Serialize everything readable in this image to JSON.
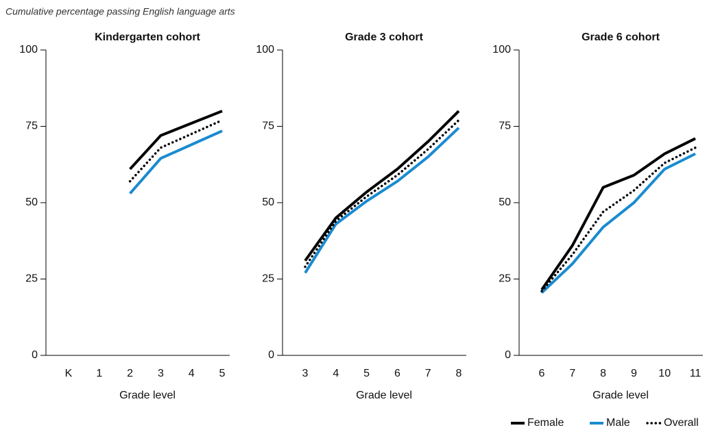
{
  "title": "Cumulative percentage passing English language arts",
  "chart_data": [
    {
      "type": "line",
      "title": "Kindergarten cohort",
      "xlabel": "Grade level",
      "categories": [
        "K",
        "1",
        "2",
        "3",
        "4",
        "5"
      ],
      "ylim": [
        0,
        100
      ],
      "yticks": [
        0,
        25,
        50,
        75,
        100
      ],
      "series": [
        {
          "name": "Female",
          "color": "#000000",
          "linestyle": "solid",
          "values": [
            null,
            null,
            61,
            72,
            76,
            80
          ]
        },
        {
          "name": "Male",
          "color": "#1a8bd0",
          "linestyle": "solid",
          "values": [
            null,
            null,
            53,
            64.5,
            69,
            73.5
          ]
        },
        {
          "name": "Overall",
          "color": "#000000",
          "linestyle": "dotted",
          "values": [
            null,
            null,
            57,
            68,
            72.5,
            77
          ]
        }
      ]
    },
    {
      "type": "line",
      "title": "Grade 3 cohort",
      "xlabel": "Grade level",
      "categories": [
        "3",
        "4",
        "5",
        "6",
        "7",
        "8"
      ],
      "ylim": [
        0,
        100
      ],
      "yticks": [
        0,
        25,
        50,
        75,
        100
      ],
      "series": [
        {
          "color": "#000000",
          "linestyle": "solid",
          "values": [
            31,
            45,
            53.5,
            61,
            70,
            80
          ]
        },
        {
          "color": "#1a8bd0",
          "linestyle": "solid",
          "values": [
            27,
            43,
            50.5,
            57,
            65,
            74.5
          ]
        },
        {
          "color": "#000000",
          "linestyle": "dotted",
          "values": [
            29,
            44,
            52,
            59,
            67.5,
            77
          ]
        }
      ]
    },
    {
      "type": "line",
      "title": "Grade 6 cohort",
      "xlabel": "Grade level",
      "categories": [
        "6",
        "7",
        "8",
        "9",
        "10",
        "11"
      ],
      "ylim": [
        0,
        100
      ],
      "yticks": [
        0,
        25,
        50,
        75,
        100
      ],
      "series": [
        {
          "color": "#000000",
          "linestyle": "solid",
          "values": [
            21.5,
            36,
            55,
            59,
            66,
            71
          ]
        },
        {
          "color": "#1a8bd0",
          "linestyle": "solid",
          "values": [
            20.5,
            30,
            42,
            50,
            61,
            66
          ]
        },
        {
          "color": "#000000",
          "linestyle": "dotted",
          "values": [
            21,
            33,
            47,
            54,
            63,
            68
          ]
        }
      ]
    }
  ]
}
